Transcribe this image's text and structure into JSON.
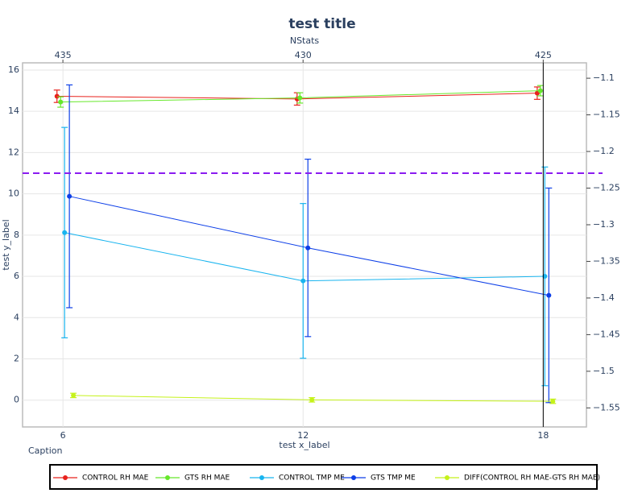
{
  "chart_data": {
    "type": "line",
    "title": "test title",
    "x_label": "test x_label",
    "y_label": "test y_label",
    "x2_label": "NStats",
    "caption": "Caption",
    "xlim": [
      4.99,
      19.08
    ],
    "xticks": [
      6,
      12,
      18
    ],
    "x2lim": [
      435.84,
      424.1
    ],
    "x2ticks": [
      435,
      430,
      425
    ],
    "ylim": [
      -1.3,
      16.35
    ],
    "yticks": [
      0,
      2,
      4,
      6,
      8,
      10,
      12,
      14,
      16
    ],
    "y2lim": [
      -1.576,
      -1.079
    ],
    "y2ticks": [
      {
        "value": -1.1,
        "label": "−1.1"
      },
      {
        "value": -1.15,
        "label": "−1.15"
      },
      {
        "value": -1.2,
        "label": "−1.2"
      },
      {
        "value": -1.25,
        "label": "−1.25"
      },
      {
        "value": -1.3,
        "label": "−1.3"
      },
      {
        "value": -1.35,
        "label": "−1.35"
      },
      {
        "value": -1.4,
        "label": "−1.4"
      },
      {
        "value": -1.45,
        "label": "−1.45"
      },
      {
        "value": -1.5,
        "label": "−1.5"
      },
      {
        "value": -1.55,
        "label": "−1.55"
      }
    ],
    "grid": true,
    "hline": {
      "value": 11,
      "color": "#8a1cf0"
    },
    "vline": {
      "value": 18,
      "color": "#000000"
    },
    "series": [
      {
        "name": "CONTROL RH MAE",
        "color": "#e8211c",
        "x": [
          5.85,
          11.85,
          17.85
        ],
        "values": [
          14.73,
          14.6,
          14.88
        ],
        "errors": [
          0.3,
          0.3,
          0.3
        ]
      },
      {
        "name": "GTS RH MAE",
        "color": "#66e82a",
        "x": [
          5.94,
          11.92,
          17.93
        ],
        "values": [
          14.45,
          14.65,
          15.0
        ],
        "errors": [
          0.25,
          0.25,
          0.25
        ]
      },
      {
        "name": "CONTROL TMP ME",
        "color": "#18b4ef",
        "x": [
          6.04,
          12.0,
          18.04
        ],
        "values": [
          8.12,
          5.78,
          6.0
        ],
        "errors": [
          5.1,
          3.75,
          5.3
        ]
      },
      {
        "name": "GTS TMP ME",
        "color": "#0d3fe8",
        "x": [
          6.16,
          12.12,
          18.14
        ],
        "values": [
          9.88,
          7.38,
          5.08
        ],
        "errors": [
          5.4,
          4.3,
          5.2
        ]
      },
      {
        "name": "DIFF(CONTROL RH MAE-GTS RH MAE)",
        "color": "#c5f21a",
        "axis": "y2",
        "x": [
          6.26,
          12.22,
          18.24
        ],
        "values": [
          -1.533,
          -1.539,
          -1.541
        ],
        "errors": [
          0.003,
          0.003,
          0.003
        ]
      }
    ]
  }
}
